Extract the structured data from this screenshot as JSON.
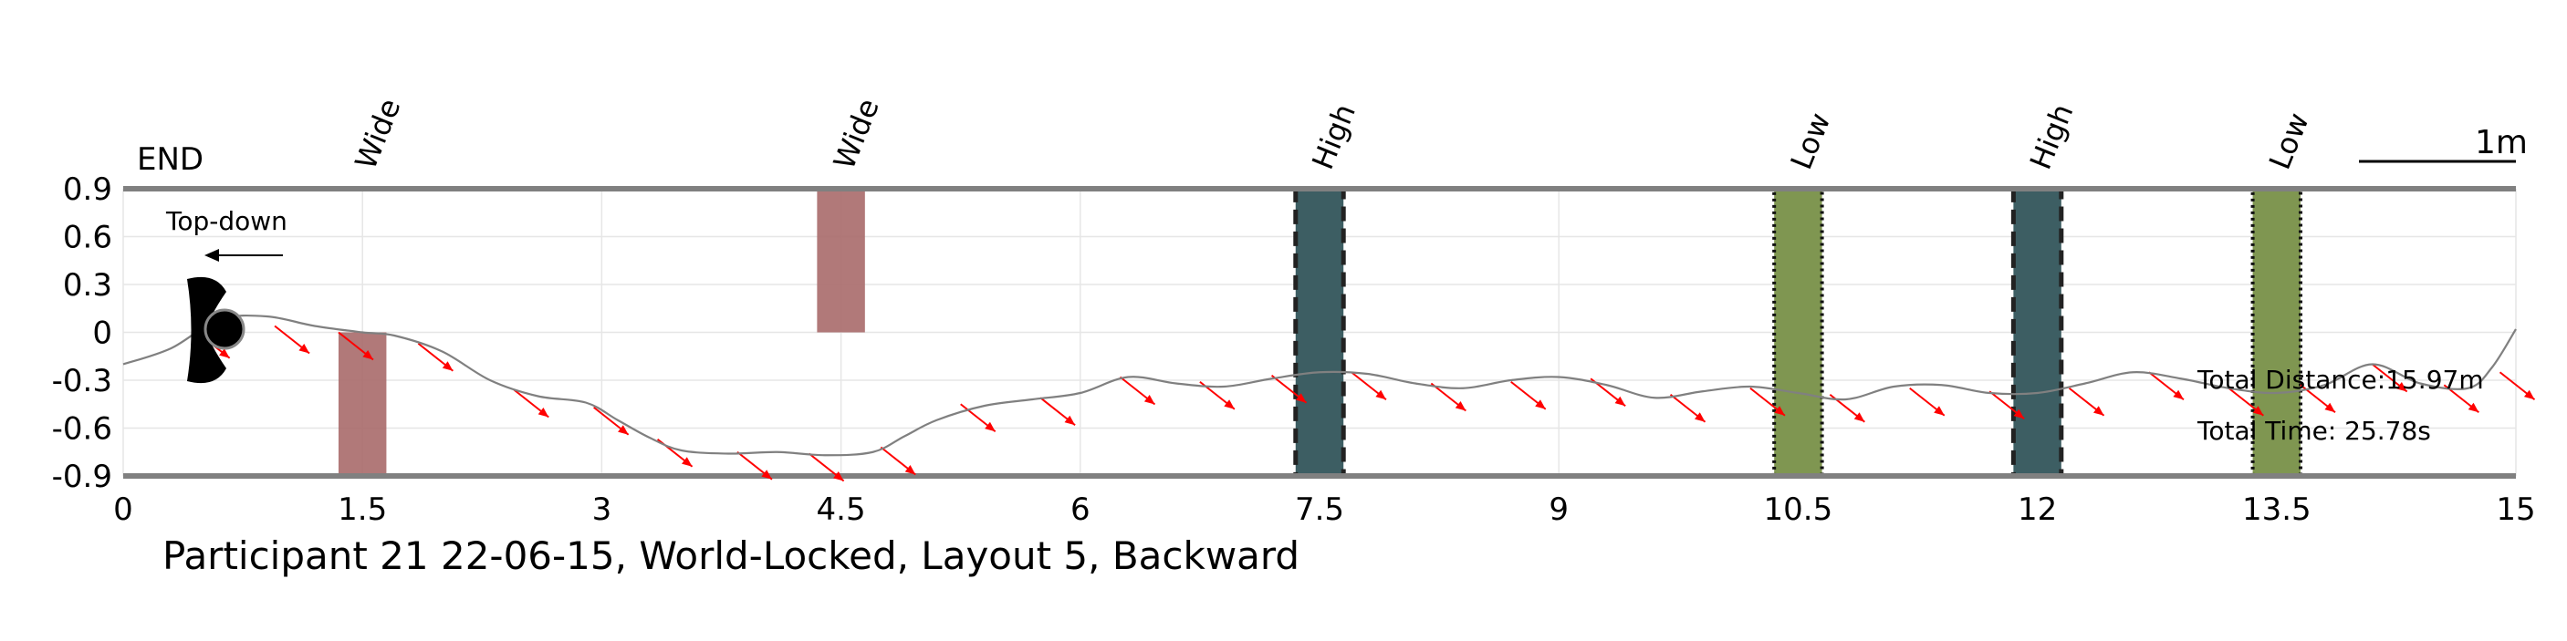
{
  "chart_data": {
    "type": "line",
    "title": "Participant 21 22-06-15, World-Locked, Layout 5, Backward",
    "xlabel": "",
    "ylabel": "",
    "xlim": [
      0,
      15
    ],
    "ylim": [
      -0.9,
      0.9
    ],
    "xticks": [
      "0",
      "1.5",
      "3",
      "4.5",
      "6",
      "7.5",
      "9",
      "10.5",
      "12",
      "13.5",
      "15"
    ],
    "yticks": [
      "0.9",
      "0.6",
      "0.3",
      "0",
      "-0.3",
      "-0.6",
      "-0.9"
    ],
    "grid": true,
    "end_label": "END",
    "view_label": "Top-down",
    "scale_label": "1m",
    "scale_length_m": 1,
    "stats": {
      "distance": "Total Distance:15.97m",
      "time": "Total Time: 25.78s"
    },
    "obstacles": [
      {
        "label": "Wide",
        "x0": 1.35,
        "x1": 1.65,
        "y0": -0.9,
        "y1": 0,
        "color": "#a86a6a",
        "style": "solid"
      },
      {
        "label": "Wide",
        "x0": 4.35,
        "x1": 4.65,
        "y0": 0,
        "y1": 0.9,
        "color": "#a86a6a",
        "style": "solid"
      },
      {
        "label": "High",
        "x0": 7.35,
        "x1": 7.65,
        "y0": -0.9,
        "y1": 0.9,
        "color": "#3d5e63",
        "style": "dashed"
      },
      {
        "label": "Low",
        "x0": 10.35,
        "x1": 10.65,
        "y0": -0.9,
        "y1": 0.9,
        "color": "#7f9651",
        "style": "dotted"
      },
      {
        "label": "High",
        "x0": 11.85,
        "x1": 12.15,
        "y0": -0.9,
        "y1": 0.9,
        "color": "#3d5e63",
        "style": "dashed"
      },
      {
        "label": "Low",
        "x0": 13.35,
        "x1": 13.65,
        "y0": -0.9,
        "y1": 0.9,
        "color": "#7f9651",
        "style": "dotted"
      }
    ],
    "series": [
      {
        "x": [
          0,
          0.3,
          0.6,
          0.9,
          1.2,
          1.5,
          1.7,
          2.0,
          2.3,
          2.6,
          2.9,
          3.1,
          3.3,
          3.5,
          3.8,
          4.1,
          4.4,
          4.7,
          4.9,
          5.1,
          5.4,
          5.7,
          6.0,
          6.3,
          6.6,
          6.9,
          7.2,
          7.5,
          7.8,
          8.1,
          8.4,
          8.7,
          9.0,
          9.3,
          9.6,
          9.9,
          10.2,
          10.5,
          10.8,
          11.1,
          11.4,
          11.7,
          12.0,
          12.3,
          12.6,
          12.9,
          13.2,
          13.5,
          13.8,
          14.1,
          14.4,
          14.7,
          14.85,
          15.0
        ],
        "y": [
          -0.2,
          -0.1,
          0.08,
          0.1,
          0.04,
          0.0,
          -0.02,
          -0.12,
          -0.3,
          -0.4,
          -0.44,
          -0.55,
          -0.66,
          -0.74,
          -0.76,
          -0.75,
          -0.77,
          -0.75,
          -0.65,
          -0.55,
          -0.46,
          -0.42,
          -0.38,
          -0.28,
          -0.32,
          -0.34,
          -0.29,
          -0.25,
          -0.26,
          -0.32,
          -0.35,
          -0.3,
          -0.28,
          -0.33,
          -0.41,
          -0.37,
          -0.34,
          -0.38,
          -0.42,
          -0.34,
          -0.33,
          -0.38,
          -0.38,
          -0.32,
          -0.25,
          -0.29,
          -0.35,
          -0.38,
          -0.33,
          -0.2,
          -0.32,
          -0.35,
          -0.22,
          0.02
        ]
      }
    ],
    "arrows": {
      "x": [
        0.45,
        0.95,
        1.35,
        1.85,
        2.45,
        2.95,
        3.35,
        3.85,
        4.3,
        4.75,
        5.25,
        5.75,
        6.25,
        6.75,
        7.2,
        7.7,
        8.2,
        8.7,
        9.2,
        9.7,
        10.2,
        10.7,
        11.2,
        11.7,
        12.2,
        12.7,
        13.2,
        13.65,
        14.1,
        14.55,
        14.9
      ],
      "y": [
        0.01,
        0.04,
        0.0,
        -0.07,
        -0.36,
        -0.47,
        -0.67,
        -0.75,
        -0.76,
        -0.72,
        -0.45,
        -0.41,
        -0.28,
        -0.31,
        -0.27,
        -0.25,
        -0.32,
        -0.31,
        -0.29,
        -0.39,
        -0.35,
        -0.39,
        -0.35,
        -0.37,
        -0.35,
        -0.25,
        -0.35,
        -0.33,
        -0.2,
        -0.33,
        -0.25
      ]
    },
    "colors": {
      "trajectory": "#808080",
      "arrows": "#ff0000",
      "frame": "#808080",
      "grid": "#e6e6e6"
    }
  }
}
